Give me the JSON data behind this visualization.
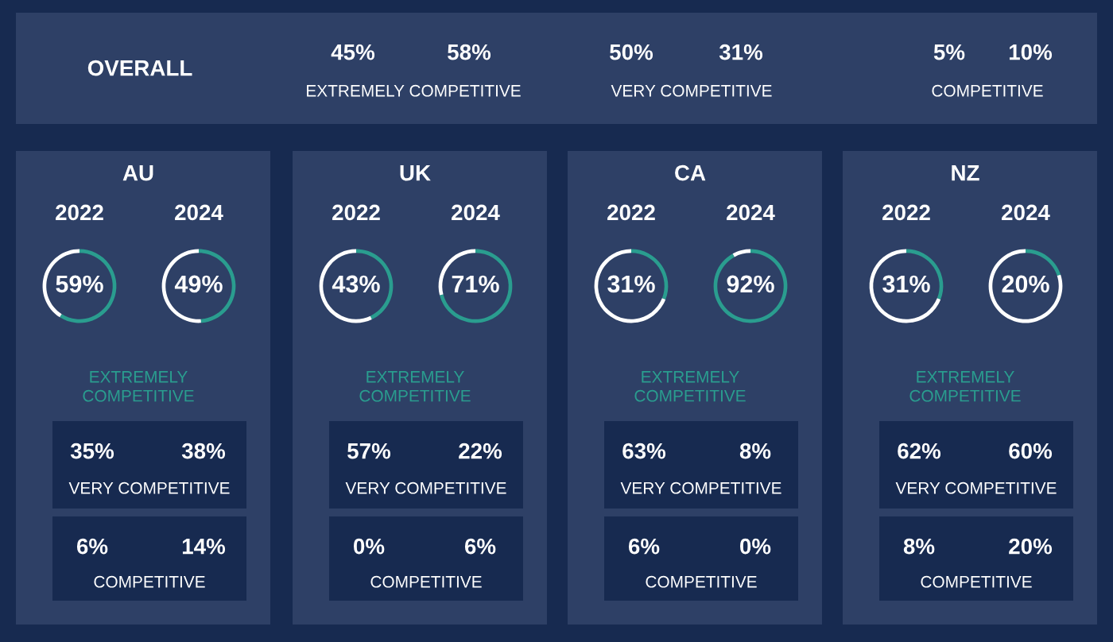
{
  "chart_data": [
    {
      "type": "other",
      "annotations": [
        "OVERALL",
        "45%",
        "58%",
        "EXTREMELY COMPETITIVE",
        "50%",
        "31%",
        "VERY COMPETITIVE",
        "5%",
        "10%",
        "COMPETITIVE"
      ]
    },
    {
      "type": "other",
      "title": "AU",
      "annotations": [
        "EXTREMELY COMPETITIVE",
        "35%",
        "38%",
        "VERY COMPETITIVE",
        "6%",
        "14%",
        "COMPETITIVE"
      ]
    },
    {
      "type": "donut",
      "title": "2022",
      "categories": [
        null,
        null
      ],
      "values": [
        59,
        41
      ],
      "colors": [
        "#2a9d8f",
        "#ffffff"
      ],
      "value_labels": [
        "59%",
        null
      ]
    },
    {
      "type": "donut",
      "title": "2024",
      "categories": [
        null,
        null
      ],
      "values": [
        49,
        51
      ],
      "colors": [
        "#2a9d8f",
        "#ffffff"
      ],
      "value_labels": [
        "49%",
        null
      ]
    },
    {
      "type": "other",
      "title": "UK",
      "annotations": [
        "EXTREMELY COMPETITIVE",
        "57%",
        "22%",
        "VERY COMPETITIVE",
        "0%",
        "6%",
        "COMPETITIVE"
      ]
    },
    {
      "type": "donut",
      "title": "2022",
      "categories": [
        null,
        null
      ],
      "values": [
        43,
        57
      ],
      "colors": [
        "#2a9d8f",
        "#ffffff"
      ],
      "value_labels": [
        "43%",
        null
      ]
    },
    {
      "type": "donut",
      "title": "2024",
      "categories": [
        null,
        null
      ],
      "values": [
        71,
        29
      ],
      "colors": [
        "#2a9d8f",
        "#ffffff"
      ],
      "value_labels": [
        "71%",
        null
      ]
    },
    {
      "type": "other",
      "title": "CA",
      "annotations": [
        "EXTREMELY COMPETITIVE",
        "63%",
        "8%",
        "VERY COMPETITIVE",
        "6%",
        "0%",
        "COMPETITIVE"
      ]
    },
    {
      "type": "donut",
      "title": "2022",
      "categories": [
        null,
        null
      ],
      "values": [
        31,
        69
      ],
      "colors": [
        "#2a9d8f",
        "#ffffff"
      ],
      "value_labels": [
        "31%",
        null
      ]
    },
    {
      "type": "donut",
      "title": "2024",
      "categories": [
        null,
        null
      ],
      "values": [
        92,
        8
      ],
      "colors": [
        "#2a9d8f",
        "#ffffff"
      ],
      "value_labels": [
        "92%",
        null
      ]
    },
    {
      "type": "other",
      "title": "NZ",
      "annotations": [
        "EXTREMELY COMPETITIVE",
        "62%",
        "60%",
        "VERY COMPETITIVE",
        "8%",
        "20%",
        "COMPETITIVE"
      ]
    },
    {
      "type": "donut",
      "title": "2022",
      "categories": [
        null,
        null
      ],
      "values": [
        31,
        69
      ],
      "colors": [
        "#2a9d8f",
        "#ffffff"
      ],
      "value_labels": [
        "31%",
        null
      ]
    },
    {
      "type": "donut",
      "title": "2024",
      "categories": [
        null,
        null
      ],
      "values": [
        20,
        80
      ],
      "colors": [
        "#2a9d8f",
        "#ffffff"
      ],
      "value_labels": [
        "20%",
        null
      ]
    }
  ]
}
